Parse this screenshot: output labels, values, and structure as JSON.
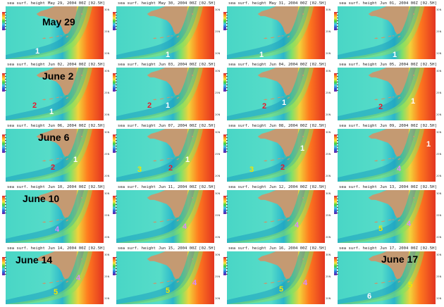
{
  "header_label": "sea surf. height",
  "suffix": "00Z  [02.5H]",
  "y_ticks": [
    "30N",
    "25N",
    "20N"
  ],
  "colors": {
    "red": "#e8172a",
    "white": "#ffffff",
    "yellow": "#f2e600",
    "violet": "#d88aff",
    "land": "#c49a72"
  },
  "panels": [
    {
      "date": "May 29, 2004",
      "title": "May 29",
      "eddies": [
        {
          "label": "1",
          "color": "white"
        }
      ]
    },
    {
      "date": "May 30, 2004",
      "eddies": [
        {
          "label": "1",
          "color": "white"
        }
      ]
    },
    {
      "date": "May 31, 2004",
      "eddies": [
        {
          "label": "1",
          "color": "white"
        }
      ]
    },
    {
      "date": "Jun 01, 2004",
      "eddies": [
        {
          "label": "1",
          "color": "white"
        }
      ]
    },
    {
      "date": "Jun 02, 2004",
      "title": "June 2",
      "eddies": [
        {
          "label": "2",
          "color": "red"
        },
        {
          "label": "1",
          "color": "white"
        }
      ]
    },
    {
      "date": "Jun 03, 2004",
      "eddies": [
        {
          "label": "2",
          "color": "red"
        },
        {
          "label": "1",
          "color": "white"
        }
      ]
    },
    {
      "date": "Jun 04, 2004",
      "eddies": [
        {
          "label": "2",
          "color": "red"
        },
        {
          "label": "1",
          "color": "white"
        }
      ]
    },
    {
      "date": "Jun 05, 2004",
      "eddies": [
        {
          "label": "2",
          "color": "red"
        },
        {
          "label": "1",
          "color": "white"
        }
      ]
    },
    {
      "date": "Jun 06, 2004",
      "title": "June 6",
      "eddies": [
        {
          "label": "2",
          "color": "red"
        },
        {
          "label": "1",
          "color": "white"
        }
      ]
    },
    {
      "date": "Jun 07, 2004",
      "eddies": [
        {
          "label": "3",
          "color": "yellow"
        },
        {
          "label": "2",
          "color": "red"
        },
        {
          "label": "1",
          "color": "white"
        }
      ]
    },
    {
      "date": "Jun 08, 2004",
      "eddies": [
        {
          "label": "3",
          "color": "yellow"
        },
        {
          "label": "2",
          "color": "red"
        },
        {
          "label": "1",
          "color": "white"
        }
      ]
    },
    {
      "date": "Jun 09, 2004",
      "eddies": [
        {
          "label": "4",
          "color": "violet"
        },
        {
          "label": "1",
          "color": "white"
        }
      ]
    },
    {
      "date": "Jun 10, 2004",
      "title": "June 10",
      "eddies": [
        {
          "label": "4",
          "color": "violet"
        }
      ]
    },
    {
      "date": "Jun 11, 2004",
      "eddies": [
        {
          "label": "4",
          "color": "violet"
        }
      ]
    },
    {
      "date": "Jun 12, 2004",
      "eddies": [
        {
          "label": "4",
          "color": "violet"
        }
      ]
    },
    {
      "date": "Jun 13, 2004",
      "eddies": [
        {
          "label": "5",
          "color": "yellow"
        },
        {
          "label": "4",
          "color": "violet"
        }
      ]
    },
    {
      "date": "Jun 14, 2004",
      "title": "June 14",
      "eddies": [
        {
          "label": "4",
          "color": "violet"
        },
        {
          "label": "5",
          "color": "yellow"
        }
      ]
    },
    {
      "date": "Jun 15, 2004",
      "eddies": [
        {
          "label": "4",
          "color": "violet"
        },
        {
          "label": "5",
          "color": "yellow"
        }
      ]
    },
    {
      "date": "Jun 16, 2004",
      "eddies": [
        {
          "label": "4",
          "color": "violet"
        },
        {
          "label": "5",
          "color": "yellow"
        }
      ]
    },
    {
      "date": "Jun 17, 2004",
      "title": "June 17",
      "eddies": [
        {
          "label": "5",
          "color": "yellow"
        },
        {
          "label": "6",
          "color": "white"
        }
      ]
    }
  ]
}
